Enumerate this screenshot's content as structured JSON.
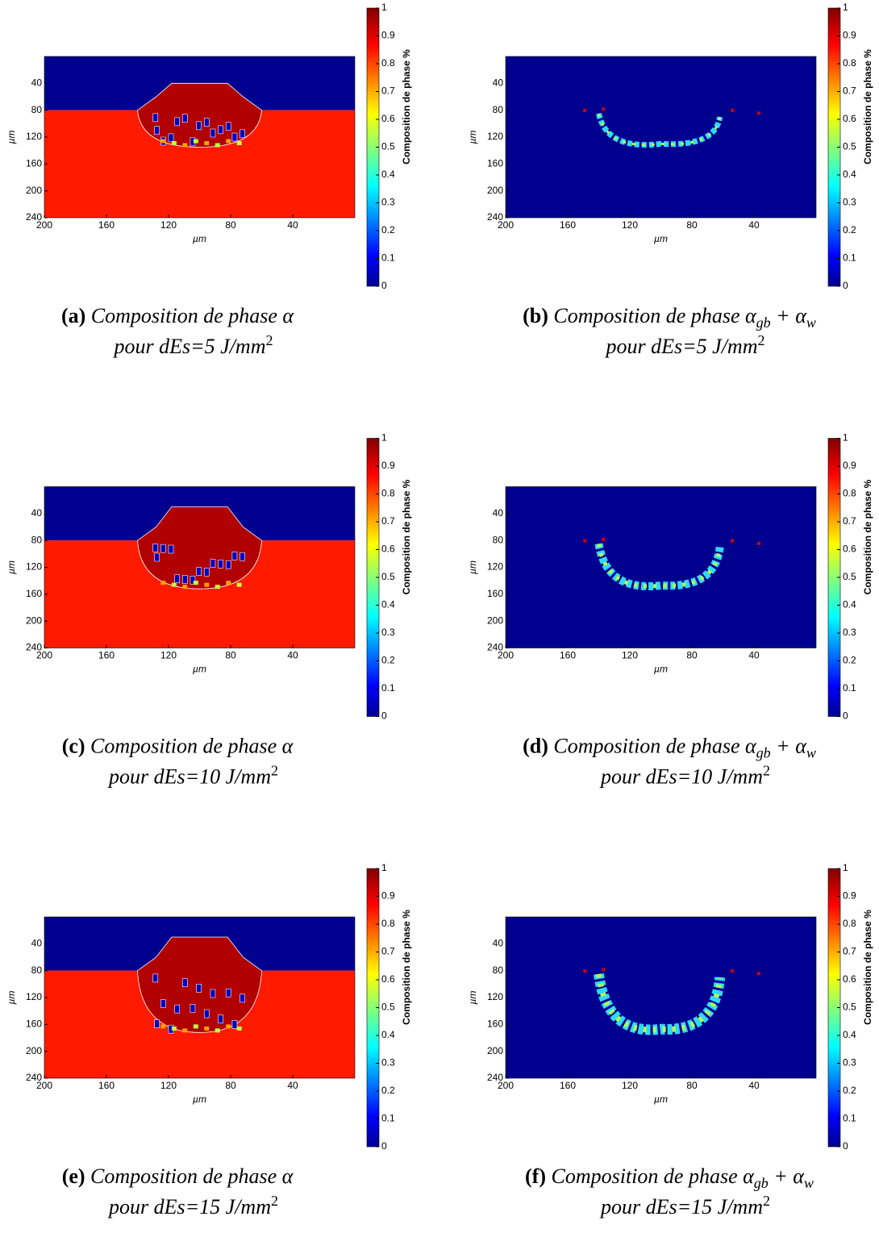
{
  "chart_data": [
    {
      "type": "heatmap",
      "xlabel": "µm",
      "ylabel": "µm",
      "xlim": [
        200,
        0
      ],
      "ylim": [
        0,
        240
      ],
      "xticks": [
        200,
        160,
        120,
        80,
        40
      ],
      "yticks": [
        40,
        80,
        120,
        160,
        200,
        240
      ],
      "colorbar": {
        "label": "Composition de phase %",
        "lim": [
          0,
          1
        ],
        "ticks": [
          0,
          0.1,
          0.2,
          0.3,
          0.4,
          0.5,
          0.6,
          0.7,
          0.8,
          0.9,
          1
        ]
      },
      "caption": {
        "label": "(a)",
        "text": "Composition de phase α",
        "line2": "pour dEs=5 J/mm",
        "sup": "2"
      }
    },
    {
      "type": "heatmap",
      "xlabel": "µm",
      "ylabel": "µm",
      "xlim": [
        200,
        0
      ],
      "ylim": [
        0,
        240
      ],
      "xticks": [
        200,
        160,
        120,
        80,
        40
      ],
      "yticks": [
        40,
        80,
        120,
        160,
        200,
        240
      ],
      "colorbar": {
        "label": "Composition de phase %",
        "lim": [
          0,
          1
        ],
        "ticks": [
          0,
          0.1,
          0.2,
          0.3,
          0.4,
          0.5,
          0.6,
          0.7,
          0.8,
          0.9,
          1
        ]
      },
      "caption": {
        "label": "(b)",
        "text": "Composition de phase α",
        "sub1": "gb",
        "plus": " + α",
        "sub2": "w",
        "line2": "pour dEs=5 J/mm",
        "sup": "2"
      }
    },
    {
      "type": "heatmap",
      "xlabel": "µm",
      "ylabel": "µm",
      "xlim": [
        200,
        0
      ],
      "ylim": [
        0,
        240
      ],
      "xticks": [
        200,
        160,
        120,
        80,
        40
      ],
      "yticks": [
        40,
        80,
        120,
        160,
        200,
        240
      ],
      "colorbar": {
        "label": "Composition de phase %",
        "lim": [
          0,
          1
        ],
        "ticks": [
          0,
          0.1,
          0.2,
          0.3,
          0.4,
          0.5,
          0.6,
          0.7,
          0.8,
          0.9,
          1
        ]
      },
      "caption": {
        "label": "(c)",
        "text": "Composition de phase α",
        "line2": "pour dEs=10 J/mm",
        "sup": "2"
      }
    },
    {
      "type": "heatmap",
      "xlabel": "µm",
      "ylabel": "µm",
      "xlim": [
        200,
        0
      ],
      "ylim": [
        0,
        240
      ],
      "xticks": [
        200,
        160,
        120,
        80,
        40
      ],
      "yticks": [
        40,
        80,
        120,
        160,
        200,
        240
      ],
      "colorbar": {
        "label": "Composition de phase %",
        "lim": [
          0,
          1
        ],
        "ticks": [
          0,
          0.1,
          0.2,
          0.3,
          0.4,
          0.5,
          0.6,
          0.7,
          0.8,
          0.9,
          1
        ]
      },
      "caption": {
        "label": "(d)",
        "text": "Composition de phase α",
        "sub1": "gb",
        "plus": " + α",
        "sub2": "w",
        "line2": "pour dEs=10 J/mm",
        "sup": "2"
      }
    },
    {
      "type": "heatmap",
      "xlabel": "µm",
      "ylabel": "µm",
      "xlim": [
        200,
        0
      ],
      "ylim": [
        0,
        240
      ],
      "xticks": [
        200,
        160,
        120,
        80,
        40
      ],
      "yticks": [
        40,
        80,
        120,
        160,
        200,
        240
      ],
      "colorbar": {
        "label": "Composition de phase %",
        "lim": [
          0,
          1
        ],
        "ticks": [
          0,
          0.1,
          0.2,
          0.3,
          0.4,
          0.5,
          0.6,
          0.7,
          0.8,
          0.9,
          1
        ]
      },
      "caption": {
        "label": "(e)",
        "text": "Composition de phase α",
        "line2": "pour dEs=15 J/mm",
        "sup": "2"
      }
    },
    {
      "type": "heatmap",
      "xlabel": "µm",
      "ylabel": "µm",
      "xlim": [
        200,
        0
      ],
      "ylim": [
        0,
        240
      ],
      "xticks": [
        200,
        160,
        120,
        80,
        40
      ],
      "yticks": [
        40,
        80,
        120,
        160,
        200,
        240
      ],
      "colorbar": {
        "label": "Composition de phase %",
        "lim": [
          0,
          1
        ],
        "ticks": [
          0,
          0.1,
          0.2,
          0.3,
          0.4,
          0.5,
          0.6,
          0.7,
          0.8,
          0.9,
          1
        ]
      },
      "caption": {
        "label": "(f)",
        "text": "Composition de phase α",
        "sub1": "gb",
        "plus": " + α",
        "sub2": "w",
        "line2": "pour dEs=15 J/mm",
        "sup": "2"
      }
    }
  ]
}
